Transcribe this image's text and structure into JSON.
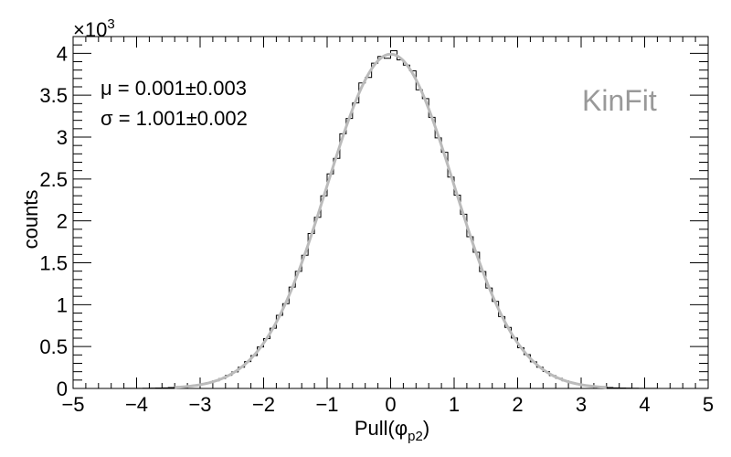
{
  "chart_data": {
    "type": "histogram",
    "xlabel": "Pull(",
    "xlabel_symbol": "φ",
    "xlabel_subscript": "p2",
    "xlabel_close": ")",
    "ylabel": "counts",
    "y_exponent_label": "×10",
    "y_exponent_power": "3",
    "xlim": [
      -5,
      5
    ],
    "ylim": [
      0,
      4.2
    ],
    "y_scale_factor": 1000,
    "xticks": [
      -5,
      -4,
      -3,
      -2,
      -1,
      0,
      1,
      2,
      3,
      4,
      5
    ],
    "xtick_labels": [
      "−5",
      "−4",
      "−3",
      "−2",
      "−1",
      "0",
      "1",
      "2",
      "3",
      "4",
      "5"
    ],
    "yticks": [
      0,
      0.5,
      1,
      1.5,
      2,
      2.5,
      3,
      3.5,
      4
    ],
    "ytick_labels": [
      "0",
      "0.5",
      "1",
      "1.5",
      "2",
      "2.5",
      "3",
      "3.5",
      "4"
    ],
    "bin_width": 0.1,
    "fit": {
      "type": "gaussian",
      "mean": 0.001,
      "sigma": 1.001,
      "amplitude": 3.99,
      "color": "#bbbbbb"
    },
    "histogram_color": "#000000",
    "grid": false,
    "annotations": {
      "mu_symbol": "μ",
      "mu_text": " = 0.001±0.003",
      "sigma_symbol": "σ",
      "sigma_text": " = 1.001±0.002",
      "watermark": "KinFit",
      "watermark_color": "#999999"
    }
  }
}
